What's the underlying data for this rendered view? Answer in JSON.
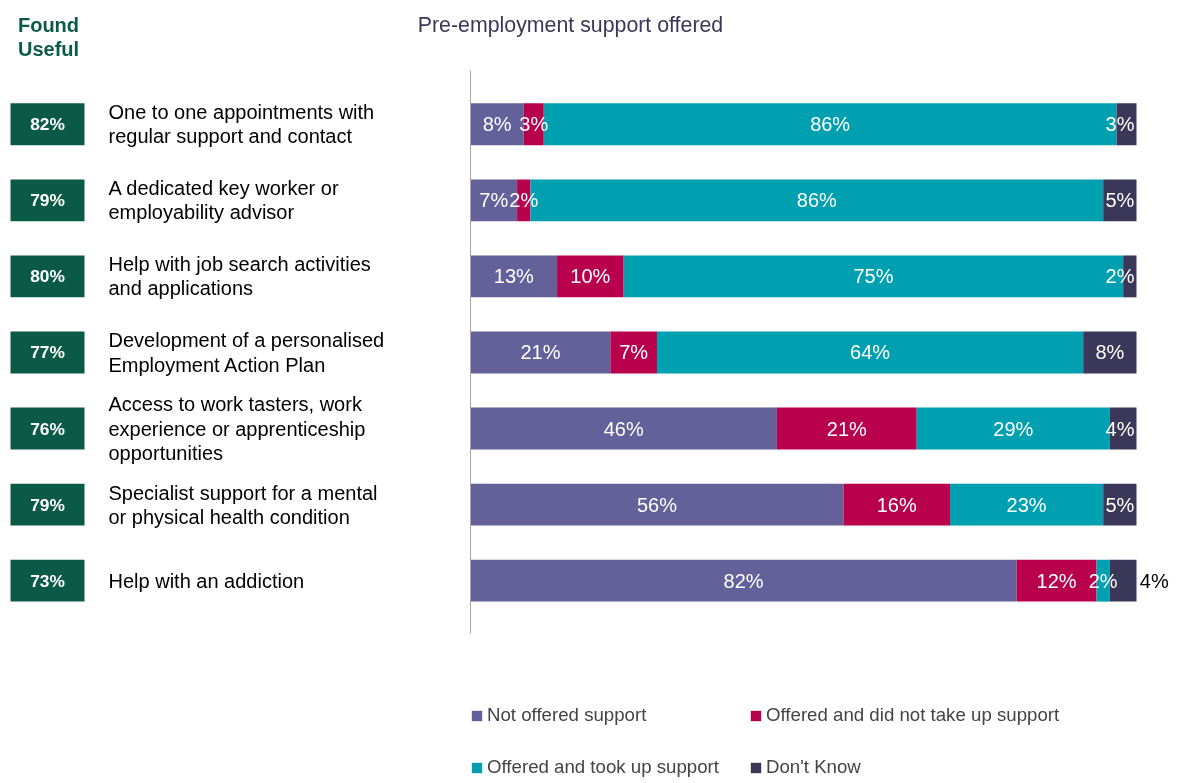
{
  "chart_data": {
    "type": "bar",
    "orientation": "horizontal",
    "stacked": true,
    "title": "Pre-employment support offered",
    "categories": [
      "One to one appointments with regular support and contact",
      "A dedicated key worker or employability advisor",
      "Help with job search activities and applications",
      "Development of a personalised Employment Action Plan",
      "Access to work tasters, work experience or apprenticeship opportunities",
      "Specialist support for a mental or physical health condition",
      "Help with an addiction"
    ],
    "series": [
      {
        "name": "Not offered support",
        "color": "#63609a",
        "values": [
          8,
          7,
          13,
          21,
          46,
          56,
          82
        ],
        "value_labels": [
          "8%",
          "7%",
          "13%",
          "21%",
          "46%",
          "56%",
          "82%"
        ]
      },
      {
        "name": "Offered and did not take up support",
        "color": "#b8004c",
        "values": [
          3,
          2,
          10,
          7,
          21,
          16,
          12
        ],
        "value_labels": [
          "3%",
          "2%",
          "10%",
          "7%",
          "21%",
          "16%",
          "12%"
        ]
      },
      {
        "name": "Offered and took up support",
        "color": "#00a0b0",
        "values": [
          86,
          86,
          75,
          64,
          29,
          23,
          2
        ],
        "value_labels": [
          "86%",
          "86%",
          "75%",
          "64%",
          "29%",
          "23%",
          "2%"
        ]
      },
      {
        "name": "Don't Know",
        "color": "#3b3758",
        "values": [
          3,
          5,
          2,
          8,
          4,
          5,
          4
        ],
        "value_labels": [
          "3%",
          "5%",
          "2%",
          "8%",
          "4%",
          "5%",
          "4%"
        ]
      }
    ],
    "xlim": [
      0,
      100
    ],
    "tick_labels": "y",
    "grid": false,
    "legend": "bottom",
    "annotations": [
      "Found Useful",
      "82%",
      "79%",
      "80%",
      "77%",
      "76%",
      "79%",
      "73%"
    ]
  }
}
